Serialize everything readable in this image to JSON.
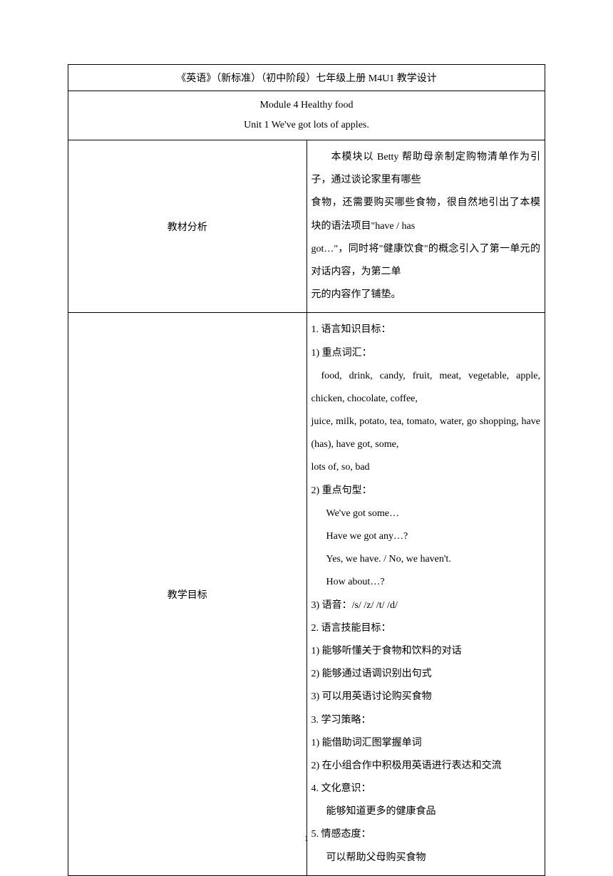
{
  "title": "《英语》（新标准）（初中阶段）七年级上册 M4U1 教学设计",
  "module_title": "Module 4 Healthy food",
  "unit_title": "Unit 1 We've got lots of apples.",
  "section1_label": "教材分析",
  "section1_content_line1": "本模块以 Betty 帮助母亲制定购物清单作为引子，通过谈论家里有哪些",
  "section1_content_line2": "食物，还需要购买哪些食物，很自然地引出了本模块的语法项目\"have / has",
  "section1_content_line3": "got…\"，同时将\"健康饮食\"的概念引入了第一单元的对话内容，为第二单",
  "section1_content_line4": "元的内容作了铺垫。",
  "section2_label": "教学目标",
  "s2_l1": "1.  语言知识目标：",
  "s2_l2": "1)  重点词汇：",
  "s2_l3": "food, drink, candy, fruit, meat, vegetable, apple, chicken, chocolate, coffee,",
  "s2_l4": "juice, milk, potato, tea, tomato, water, go shopping, have (has), have got, some,",
  "s2_l5": "lots of, so, bad",
  "s2_l6": "2)  重点句型：",
  "s2_l7": "We've got some…",
  "s2_l8": "Have we got any…?",
  "s2_l9": "Yes, we have. / No, we haven't.",
  "s2_l10": "How about…?",
  "s2_l11": "3)  语音：/s/ /z/ /t/ /d/",
  "s2_l12": "2.  语言技能目标：",
  "s2_l13": "1)  能够听懂关于食物和饮料的对话",
  "s2_l14": "2)  能够通过语调识别出句式",
  "s2_l15": "3)  可以用英语讨论购买食物",
  "s2_l16": "3.  学习策略：",
  "s2_l17": "1)  能借助词汇图掌握单词",
  "s2_l18": "2)  在小组合作中积极用英语进行表达和交流",
  "s2_l19": "4.  文化意识：",
  "s2_l20": "能够知道更多的健康食品",
  "s2_l21": "5.  情感态度：",
  "s2_l22": "可以帮助父母购买食物",
  "page_number": "1"
}
